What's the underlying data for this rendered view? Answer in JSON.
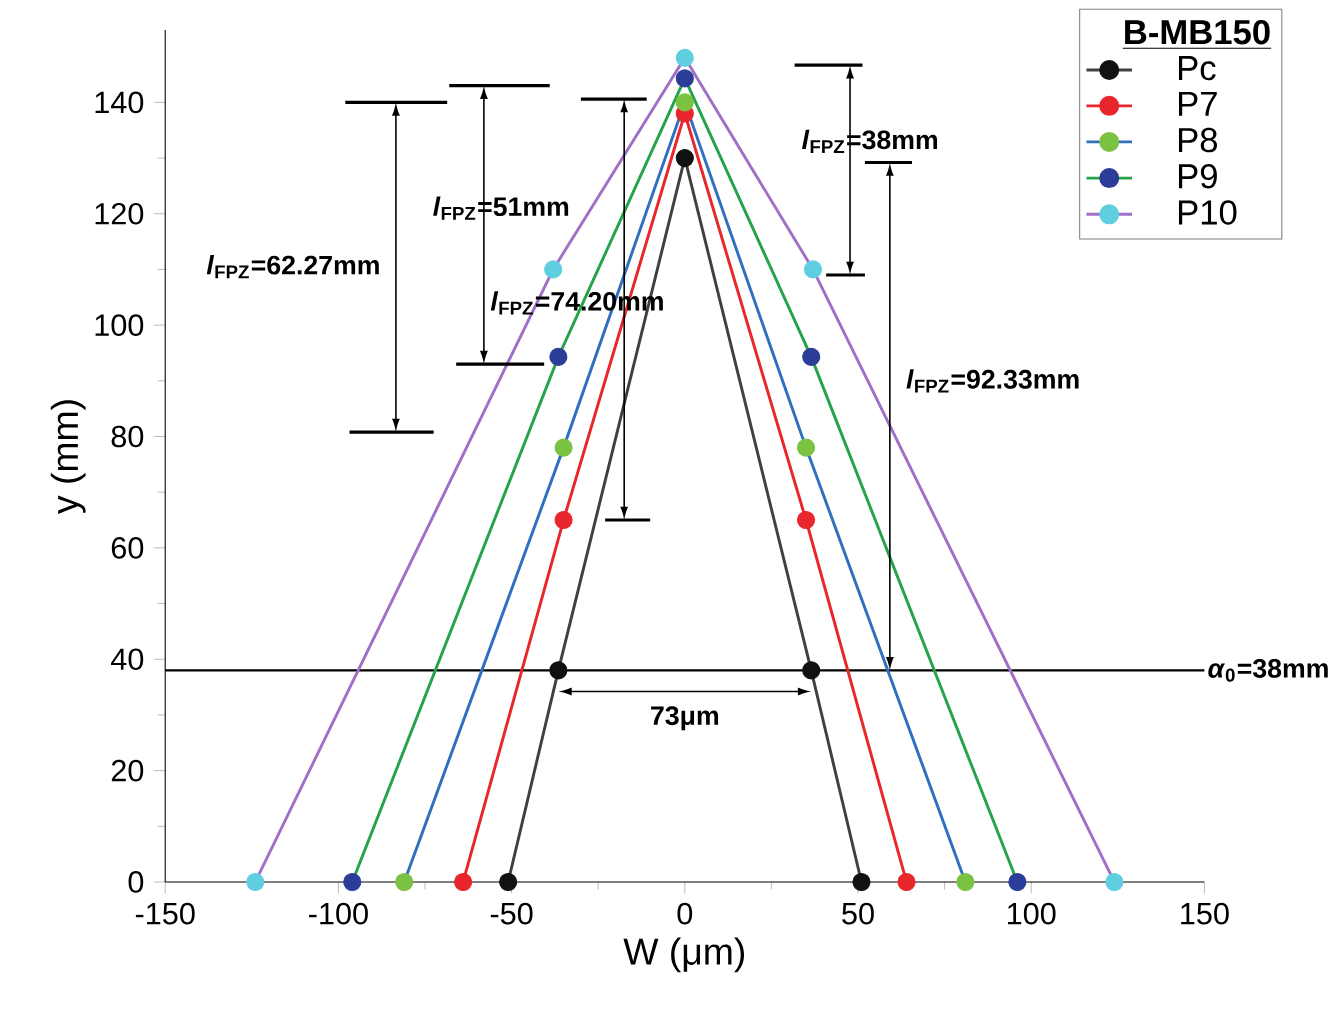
{
  "chart_data": {
    "type": "line",
    "xlabel": "W (μm)",
    "ylabel": "y (mm)",
    "xlim": [
      -150,
      150
    ],
    "ylim": [
      0,
      153
    ],
    "xticks": [
      -150,
      -100,
      -50,
      0,
      50,
      100,
      150
    ],
    "yticks": [
      0,
      20,
      40,
      60,
      80,
      100,
      120,
      140
    ],
    "marker": "circle",
    "legend": "top right",
    "legend_title": "B-MB150",
    "series": [
      {
        "name": "Pc",
        "color": "#404040",
        "colors": [
          "#111111",
          "#111111",
          "#111111",
          "#111111",
          "#111111"
        ],
        "x": [
          -51,
          -36.5,
          0,
          36.5,
          51
        ],
        "values": [
          0,
          38,
          130,
          38,
          0
        ]
      },
      {
        "name": "P7",
        "color": "#e8262b",
        "colors": [
          "#e8262b",
          "#e8262b",
          "#e8262b",
          "#e8262b",
          "#e8262b"
        ],
        "x": [
          -64,
          -35,
          0,
          35,
          64
        ],
        "values": [
          0,
          65,
          138,
          65,
          0
        ]
      },
      {
        "name": "P8",
        "color": "#2f6fc0",
        "colors": [
          "#7cc242",
          "#7cc242",
          "#7cc242",
          "#7cc242",
          "#7cc242"
        ],
        "x": [
          -81,
          -35,
          0,
          35,
          81
        ],
        "values": [
          0,
          78,
          140,
          78,
          0
        ]
      },
      {
        "name": "P9",
        "color": "#24a34a",
        "colors": [
          "#2b3d98",
          "#2b3d98",
          "#2b3d98",
          "#2b3d98",
          "#2b3d98"
        ],
        "x": [
          -96,
          -36.5,
          0,
          36.5,
          96
        ],
        "values": [
          0,
          94.3,
          144.3,
          94.3,
          0
        ]
      },
      {
        "name": "P10",
        "color": "#a070c8",
        "colors": [
          "#5fcfe0",
          "#5fcfe0",
          "#5fcfe0",
          "#5fcfe0",
          "#5fcfe0"
        ],
        "x": [
          -124,
          -38,
          0,
          37,
          124
        ],
        "values": [
          0,
          110,
          148,
          110,
          0
        ]
      }
    ],
    "ref_lines": [
      {
        "axis": "y",
        "value": 38,
        "label": "*α*$_{0}$=38mm",
        "color": "#000000"
      }
    ],
    "annotations": [
      "*l*$_{FPZ}$=62.27mm",
      "*l*$_{FPZ}$=51mm",
      "*l*$_{FPZ}$=74.20mm",
      "*l*$_{FPZ}$=38mm",
      "*l*$_{FPZ}$=92.33mm",
      "73μm"
    ]
  }
}
